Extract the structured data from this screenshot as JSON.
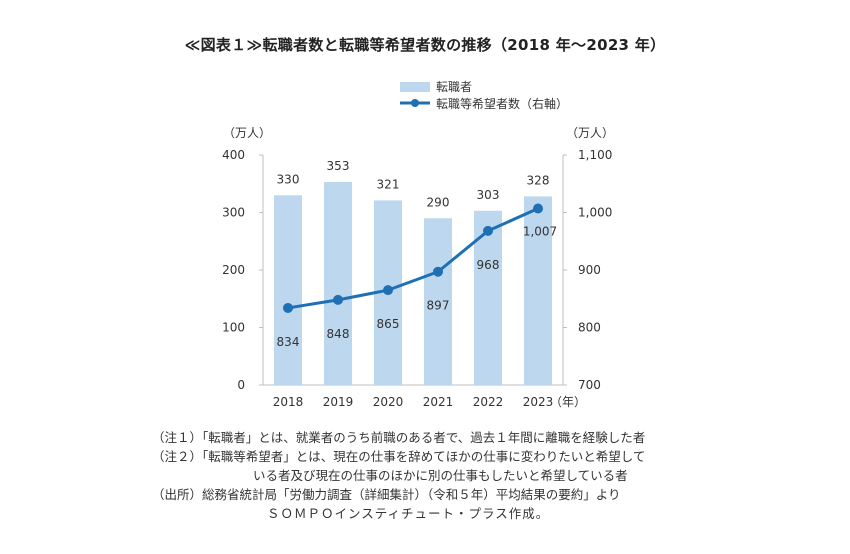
{
  "title": "≪図表１≫転職者数と転職等希望者数の推移（2018 年～2023 年）",
  "chart_data": {
    "type": "bar+line",
    "categories": [
      "2018",
      "2019",
      "2020",
      "2021",
      "2022",
      "2023"
    ],
    "series": [
      {
        "name": "転職者",
        "type": "bar",
        "axis": "left",
        "values": [
          330,
          353,
          321,
          290,
          303,
          328
        ],
        "labels": [
          "330",
          "353",
          "321",
          "290",
          "303",
          "328"
        ]
      },
      {
        "name": "転職等希望者数（右軸）",
        "type": "line",
        "axis": "right",
        "values": [
          834,
          848,
          865,
          897,
          968,
          1007
        ],
        "labels": [
          "834",
          "848",
          "865",
          "897",
          "968",
          "1,007"
        ]
      }
    ],
    "y_left": {
      "unit": "（万人）",
      "ylim": [
        0,
        400
      ],
      "ticks": [
        "0",
        "100",
        "200",
        "300",
        "400"
      ]
    },
    "y_right": {
      "unit": "（万人）",
      "ylim": [
        700,
        1100
      ],
      "ticks": [
        "700",
        "800",
        "900",
        "1,000",
        "1,100"
      ]
    },
    "x_unit": "（年）",
    "legend_position": "top",
    "grid": false,
    "colors": {
      "bar": "#bdd7ee",
      "line": "#1f6fb5",
      "axis": "#bfbfbf"
    }
  },
  "notes": {
    "note1": "（注１）「転職者」とは、就業者のうち前職のある者で、過去１年間に離職を経験した者",
    "note2_line1": "（注２）「転職等希望者」とは、現在の仕事を辞めてほかの仕事に変わりたいと希望して",
    "note2_line2": "いる者及び現在の仕事のほかに別の仕事もしたいと希望している者",
    "source_line1": "（出所）総務省統計局「労働力調査（詳細集計）（令和５年）平均結果の要約」より",
    "source_line2": "ＳＯＭＰＯインスティチュート・プラス作成。"
  }
}
